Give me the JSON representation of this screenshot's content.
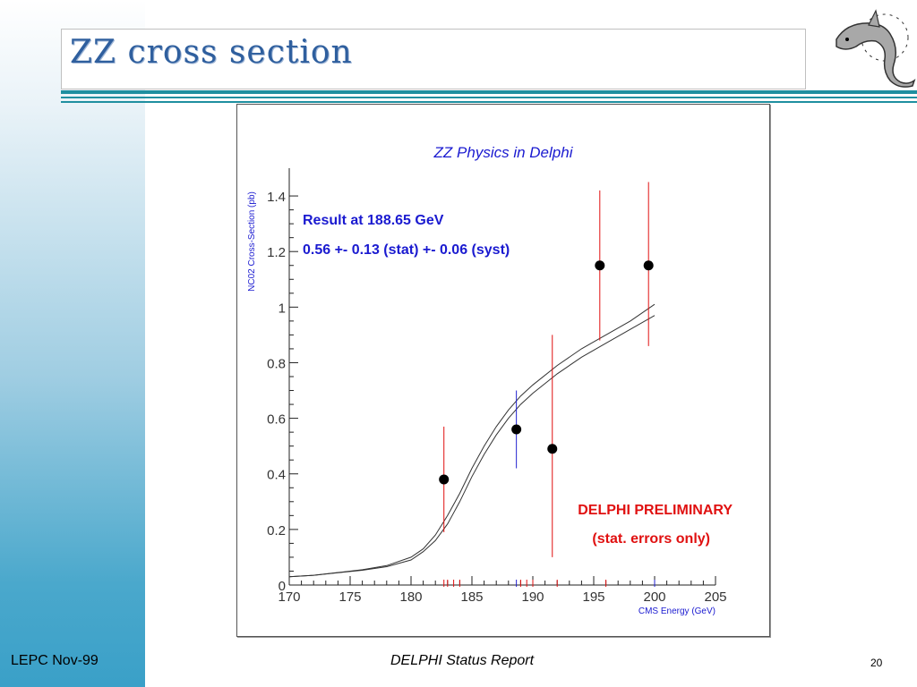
{
  "slide": {
    "title": "ZZ cross section",
    "footer_left": "LEPC Nov-99",
    "footer_center": "DELPHI Status Report",
    "page_number": "20",
    "logo": "dolphin-logo"
  },
  "colors": {
    "title": "#2f5f9e",
    "rule": "#1f8fa0",
    "chart_title": "#1a1ad0",
    "annotation_blue": "#1a1ad0",
    "preliminary_red": "#e01010",
    "error_red": "#e01010",
    "error_blue": "#2020d0"
  },
  "chart_data": {
    "type": "scatter",
    "title": "ZZ Physics in Delphi",
    "xlabel": "CMS Energy (GeV)",
    "ylabel": "NC02 Cross-Section (pb)",
    "xlim": [
      170,
      205
    ],
    "ylim": [
      0,
      1.5
    ],
    "x_ticks": [
      "170",
      "175",
      "180",
      "185",
      "190",
      "195",
      "200",
      "205"
    ],
    "y_ticks": [
      "0",
      "0.2",
      "0.4",
      "0.6",
      "0.8",
      "1",
      "1.2",
      "1.4"
    ],
    "annotations": {
      "result_line1": "Result at 188.65 GeV",
      "result_line2": "0.56 +- 0.13 (stat) +- 0.06 (syst)",
      "preliminary_line1": "DELPHI PRELIMINARY",
      "preliminary_line2": "(stat. errors only)"
    },
    "points": [
      {
        "x": 182.7,
        "y": 0.38,
        "err_low": 0.19,
        "err_high": 0.57,
        "color": "red"
      },
      {
        "x": 188.65,
        "y": 0.56,
        "err_low": 0.42,
        "err_high": 0.7,
        "color": "blue"
      },
      {
        "x": 191.6,
        "y": 0.49,
        "err_low": 0.1,
        "err_high": 0.9,
        "color": "red"
      },
      {
        "x": 195.5,
        "y": 1.15,
        "err_low": 0.88,
        "err_high": 1.42,
        "color": "red"
      },
      {
        "x": 199.5,
        "y": 1.15,
        "err_low": 0.86,
        "err_high": 1.45,
        "color": "red"
      }
    ],
    "curves": [
      {
        "x": [
          170,
          172,
          174,
          176,
          178,
          180,
          181,
          182,
          183,
          184,
          185,
          186,
          187,
          188,
          189,
          190,
          192,
          194,
          196,
          198,
          200
        ],
        "y": [
          0.03,
          0.035,
          0.045,
          0.055,
          0.07,
          0.1,
          0.13,
          0.18,
          0.25,
          0.33,
          0.42,
          0.5,
          0.57,
          0.63,
          0.68,
          0.72,
          0.79,
          0.85,
          0.9,
          0.95,
          1.01
        ]
      },
      {
        "x": [
          170,
          172,
          174,
          176,
          178,
          180,
          181,
          182,
          183,
          184,
          185,
          186,
          187,
          188,
          189,
          190,
          192,
          194,
          196,
          198,
          200
        ],
        "y": [
          0.03,
          0.035,
          0.044,
          0.053,
          0.066,
          0.09,
          0.12,
          0.16,
          0.22,
          0.3,
          0.39,
          0.47,
          0.54,
          0.6,
          0.65,
          0.69,
          0.76,
          0.82,
          0.87,
          0.92,
          0.97
        ]
      }
    ],
    "grid": false,
    "red_tick_marks_x": [
      182.7,
      183,
      183.5,
      184,
      189,
      189.5,
      190,
      192,
      196,
      200
    ],
    "blue_tick_marks_x": [
      188.65,
      200
    ]
  }
}
